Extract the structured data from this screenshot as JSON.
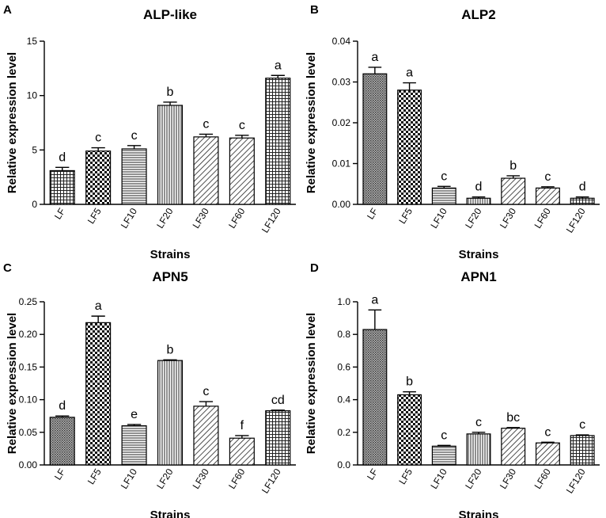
{
  "chart_data": [
    {
      "panel": "A",
      "type": "bar",
      "title": "ALP-like",
      "xlabel": "Strains",
      "ylabel": "Relative expression level",
      "ylim": [
        0,
        15
      ],
      "yticks": [
        "0",
        "5",
        "10",
        "15"
      ],
      "categories": [
        "LF",
        "LF5",
        "LF10",
        "LF20",
        "LF30",
        "LF60",
        "LF120"
      ],
      "values": [
        3.1,
        4.9,
        5.1,
        9.1,
        6.2,
        6.1,
        11.6
      ],
      "errors": [
        0.3,
        0.3,
        0.3,
        0.3,
        0.25,
        0.25,
        0.25
      ],
      "significance": [
        "d",
        "c",
        "c",
        "b",
        "c",
        "c",
        "a"
      ],
      "patterns": [
        "grid",
        "check",
        "hline",
        "vline",
        "diag",
        "diag",
        "grid"
      ]
    },
    {
      "panel": "B",
      "type": "bar",
      "title": "ALP2",
      "xlabel": "Strains",
      "ylabel": "Relative expression level",
      "ylim": [
        0,
        0.04
      ],
      "yticks": [
        "0.00",
        "0.01",
        "0.02",
        "0.03",
        "0.04"
      ],
      "categories": [
        "LF",
        "LF5",
        "LF10",
        "LF20",
        "LF30",
        "LF60",
        "LF120"
      ],
      "values": [
        0.032,
        0.028,
        0.004,
        0.0015,
        0.0064,
        0.004,
        0.0015
      ],
      "errors": [
        0.0016,
        0.0018,
        0.0004,
        0.0003,
        0.0006,
        0.0003,
        0.0003
      ],
      "significance": [
        "a",
        "a",
        "c",
        "d",
        "b",
        "c",
        "d"
      ],
      "patterns": [
        "dots",
        "check",
        "hline",
        "vline",
        "diag",
        "diag",
        "grid"
      ]
    },
    {
      "panel": "C",
      "type": "bar",
      "title": "APN5",
      "xlabel": "Strains",
      "ylabel": "Relative expression level",
      "ylim": [
        0,
        0.25
      ],
      "yticks": [
        "0.00",
        "0.05",
        "0.10",
        "0.15",
        "0.20",
        "0.25"
      ],
      "categories": [
        "LF",
        "LF5",
        "LF10",
        "LF20",
        "LF30",
        "LF60",
        "LF120"
      ],
      "values": [
        0.073,
        0.218,
        0.06,
        0.16,
        0.09,
        0.041,
        0.083
      ],
      "errors": [
        0.002,
        0.01,
        0.002,
        0.001,
        0.007,
        0.004,
        0.001
      ],
      "significance": [
        "d",
        "a",
        "e",
        "b",
        "c",
        "f",
        "cd"
      ],
      "patterns": [
        "dots",
        "check",
        "hline",
        "vline",
        "diag",
        "diag",
        "grid"
      ]
    },
    {
      "panel": "D",
      "type": "bar",
      "title": "APN1",
      "xlabel": "Strains",
      "ylabel": "Relative expression level",
      "ylim": [
        0,
        1.0
      ],
      "yticks": [
        "0.0",
        "0.2",
        "0.4",
        "0.6",
        "0.8",
        "1.0"
      ],
      "categories": [
        "LF",
        "LF5",
        "LF10",
        "LF20",
        "LF30",
        "LF60",
        "LF120"
      ],
      "values": [
        0.83,
        0.43,
        0.115,
        0.19,
        0.225,
        0.135,
        0.18
      ],
      "errors": [
        0.12,
        0.018,
        0.005,
        0.01,
        0.004,
        0.004,
        0.004
      ],
      "significance": [
        "a",
        "b",
        "c",
        "c",
        "bc",
        "c",
        "c"
      ],
      "patterns": [
        "dots",
        "check",
        "hline",
        "vline",
        "diag",
        "diag",
        "grid"
      ]
    }
  ]
}
